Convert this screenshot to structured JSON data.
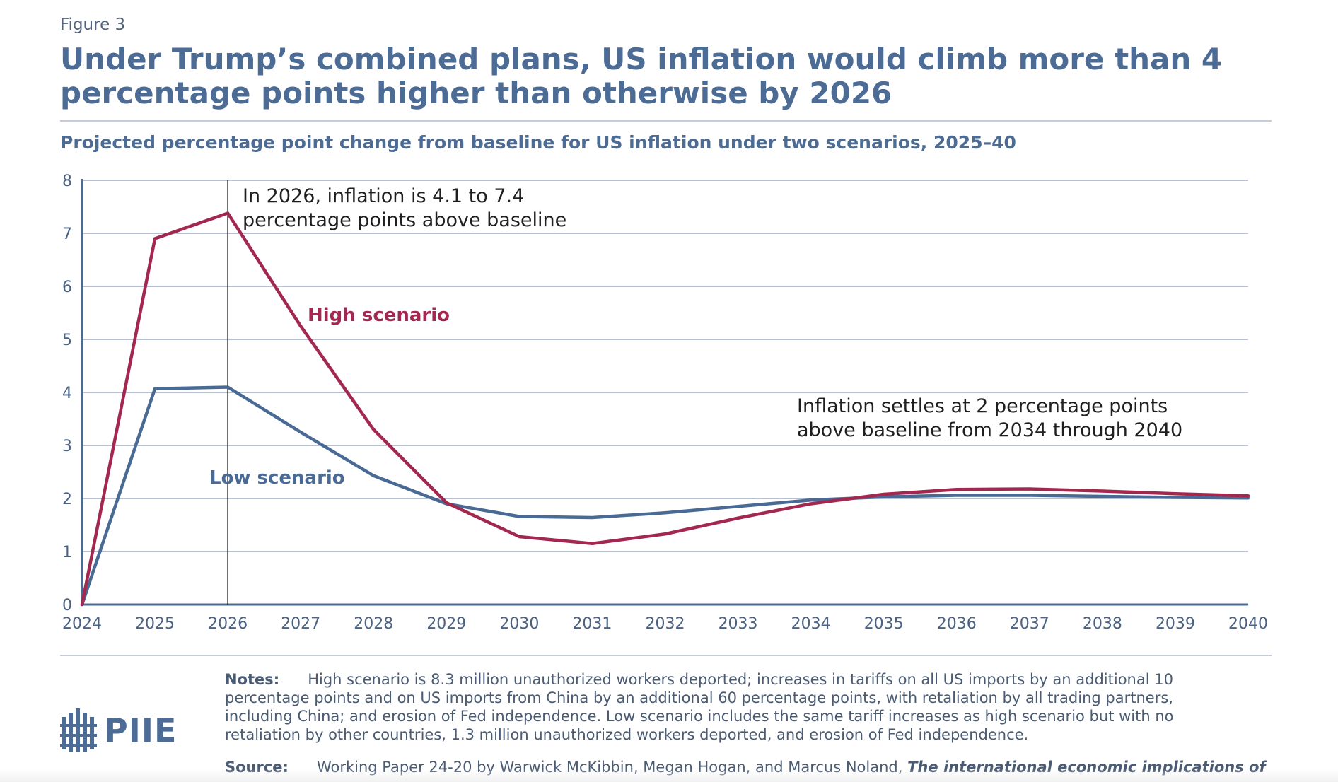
{
  "figure_label": "Figure 3",
  "title": "Under Trump’s combined plans, US inflation would climb more than 4 percentage points higher than otherwise by 2026",
  "subtitle": "Projected percentage point change from baseline for US inflation under two scenarios, 2025–40",
  "colors": {
    "high": "#a3284f",
    "low": "#4a6a96",
    "grid": "#8b9bb3",
    "axis": "#4a6a96",
    "text": "#4a6283"
  },
  "chart_data": {
    "type": "line",
    "x": [
      2024,
      2025,
      2026,
      2027,
      2028,
      2029,
      2030,
      2031,
      2032,
      2033,
      2034,
      2035,
      2036,
      2037,
      2038,
      2039,
      2040
    ],
    "series": [
      {
        "name": "High scenario",
        "values": [
          0,
          6.9,
          7.38,
          5.25,
          3.3,
          1.92,
          1.28,
          1.15,
          1.33,
          1.63,
          1.9,
          2.08,
          2.17,
          2.18,
          2.14,
          2.09,
          2.05
        ]
      },
      {
        "name": "Low scenario",
        "values": [
          0,
          4.07,
          4.1,
          3.25,
          2.43,
          1.9,
          1.66,
          1.64,
          1.73,
          1.85,
          1.97,
          2.03,
          2.06,
          2.06,
          2.04,
          2.02,
          2.01
        ]
      }
    ],
    "ylim": [
      0,
      8
    ],
    "yticks": [
      0,
      1,
      2,
      3,
      4,
      5,
      6,
      7,
      8
    ],
    "xticks": [
      2024,
      2025,
      2026,
      2027,
      2028,
      2029,
      2030,
      2031,
      2032,
      2033,
      2034,
      2035,
      2036,
      2037,
      2038,
      2039,
      2040
    ],
    "grid": true,
    "reference_line_x": 2026,
    "annotations": [
      {
        "lines": [
          "In 2026, inflation is 4.1 to 7.4",
          "percentage points above baseline"
        ]
      },
      {
        "lines": [
          "Inflation settles at 2 percentage points",
          "above baseline from 2034 through 2040"
        ]
      }
    ],
    "series_labels": [
      "High scenario",
      "Low scenario"
    ]
  },
  "notes_label": "Notes:",
  "notes_text": "High scenario is 8.3 million unauthorized workers deported; increases in tariffs on all US imports by an additional 10 percentage points and on US imports from China by an additional 60 percentage points, with retaliation by all trading partners, including China; and erosion of Fed independence. Low scenario includes the same tariff increases as high scenario but with no retaliation by other countries, 1.3 million unauthorized workers deported, and erosion of Fed independence.",
  "source_label": "Source:",
  "source_text": "Working Paper 24-20 by Warwick McKibbin, Megan Hogan, and Marcus Noland,",
  "source_title": "The international economic implications of",
  "logo_text": "PIIE"
}
